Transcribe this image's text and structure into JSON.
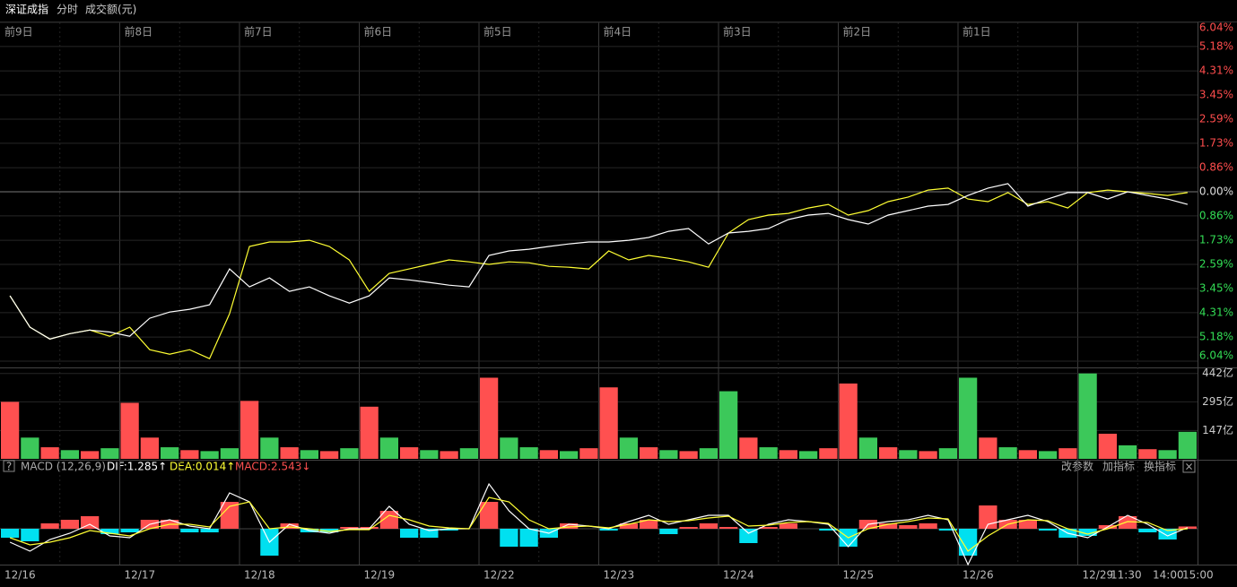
{
  "header": {
    "title": "深证成指",
    "tabs": [
      "分时",
      "成交额(元)"
    ]
  },
  "macd_header": {
    "help": "?",
    "name": "MACD (12,26,9)",
    "indicators": [
      "DIF:1.285↑",
      "DEA:0.014↑",
      "MACD:2.543↓"
    ],
    "buttons": [
      "改参数",
      "加指标",
      "换指标"
    ],
    "close": "×"
  },
  "date_labels": [
    "12/16",
    "12/17",
    "12/18",
    "12/19",
    "12/22",
    "12/23",
    "12/24",
    "12/25",
    "12/26",
    "12/29",
    "11:30",
    "14:00",
    "15:00"
  ],
  "chart_data": [
    {
      "type": "line",
      "periods": [
        "前9日",
        "前8日",
        "前7日",
        "前6日",
        "前5日",
        "前4日",
        "前3日",
        "前2日",
        "前1日"
      ],
      "x": [
        0,
        1,
        2,
        3,
        4,
        5,
        6,
        7,
        8,
        9,
        10,
        11,
        12,
        13,
        14,
        15,
        16,
        17,
        18,
        19,
        20,
        21,
        22,
        23,
        24,
        25,
        26,
        27,
        28,
        29,
        30,
        31,
        32,
        33,
        34,
        35,
        36,
        37,
        38,
        39,
        40,
        41,
        42,
        43,
        44,
        45,
        46,
        47,
        48,
        49,
        50,
        51,
        52,
        53,
        54,
        55,
        56,
        57,
        58,
        59
      ],
      "xlim": [
        -0.5,
        59.5
      ],
      "ylim": [
        -6.04,
        6.04
      ],
      "yticks": [
        {
          "value": 6.04,
          "label": "6.04%"
        },
        {
          "value": 5.18,
          "label": "5.18%"
        },
        {
          "value": 4.31,
          "label": "4.31%"
        },
        {
          "value": 3.45,
          "label": "3.45%"
        },
        {
          "value": 2.59,
          "label": "2.59%"
        },
        {
          "value": 1.73,
          "label": "1.73%"
        },
        {
          "value": 0.86,
          "label": "0.86%"
        },
        {
          "value": 0,
          "label": "0.00%"
        },
        {
          "value": -0.86,
          "label": "0.86%"
        },
        {
          "value": -1.73,
          "label": "1.73%"
        },
        {
          "value": -2.59,
          "label": "2.59%"
        },
        {
          "value": -3.45,
          "label": "3.45%"
        },
        {
          "value": -4.31,
          "label": "4.31%"
        },
        {
          "value": -5.18,
          "label": "5.18%"
        },
        {
          "value": -6.04,
          "label": "6.04%"
        }
      ],
      "grid": true,
      "series": [
        {
          "color": "#ffff33",
          "values": [
            -3.71,
            -4.83,
            -5.25,
            -5.06,
            -4.93,
            -5.15,
            -4.83,
            -5.63,
            -5.79,
            -5.63,
            -5.95,
            -4.35,
            -1.95,
            -1.79,
            -1.79,
            -1.73,
            -1.95,
            -2.43,
            -3.55,
            -2.91,
            -2.75,
            -2.59,
            -2.43,
            -2.5,
            -2.59,
            -2.5,
            -2.53,
            -2.66,
            -2.69,
            -2.75,
            -2.11,
            -2.43,
            -2.27,
            -2.37,
            -2.5,
            -2.69,
            -1.47,
            -0.99,
            -0.83,
            -0.77,
            -0.58,
            -0.45,
            -0.83,
            -0.67,
            -0.35,
            -0.19,
            0.06,
            0.13,
            -0.26,
            -0.35,
            -0.03,
            -0.45,
            -0.35,
            -0.58,
            -0.03,
            0.06,
            0,
            -0.06,
            -0.13,
            -0.03
          ]
        },
        {
          "color": "#ffffff",
          "values": [
            -3.71,
            -4.83,
            -5.25,
            -5.06,
            -4.93,
            -5.0,
            -5.15,
            -4.51,
            -4.29,
            -4.19,
            -4.03,
            -2.75,
            -3.39,
            -3.07,
            -3.55,
            -3.39,
            -3.71,
            -3.97,
            -3.71,
            -3.07,
            -3.14,
            -3.23,
            -3.33,
            -3.39,
            -2.27,
            -2.11,
            -2.05,
            -1.95,
            -1.86,
            -1.79,
            -1.79,
            -1.73,
            -1.63,
            -1.41,
            -1.31,
            -1.86,
            -1.47,
            -1.41,
            -1.31,
            -0.99,
            -0.83,
            -0.77,
            -0.99,
            -1.15,
            -0.83,
            -0.67,
            -0.51,
            -0.45,
            -0.13,
            0.13,
            0.29,
            -0.51,
            -0.26,
            -0.03,
            -0.03,
            -0.26,
            0,
            -0.13,
            -0.26,
            -0.45
          ]
        }
      ]
    },
    {
      "type": "bar",
      "ylim": [
        0,
        450
      ],
      "yticks": [
        {
          "value": 442,
          "label": "442亿"
        },
        {
          "value": 295,
          "label": "295亿"
        },
        {
          "value": 147,
          "label": "147亿"
        }
      ],
      "values": [
        295,
        110,
        60,
        45,
        40,
        55,
        290,
        110,
        60,
        45,
        40,
        55,
        300,
        110,
        60,
        45,
        40,
        55,
        270,
        110,
        60,
        45,
        40,
        55,
        420,
        110,
        60,
        45,
        40,
        55,
        370,
        110,
        60,
        45,
        40,
        55,
        350,
        110,
        60,
        45,
        40,
        55,
        390,
        110,
        60,
        45,
        40,
        55,
        420,
        110,
        60,
        45,
        40,
        55,
        442,
        130,
        70,
        50,
        45,
        140
      ],
      "colors": [
        "#ff5050",
        "#3cc85a",
        "#ff5050",
        "#3cc85a",
        "#ff5050",
        "#3cc85a",
        "#ff5050",
        "#ff5050",
        "#3cc85a",
        "#ff5050",
        "#3cc85a",
        "#3cc85a",
        "#ff5050",
        "#3cc85a",
        "#ff5050",
        "#3cc85a",
        "#ff5050",
        "#3cc85a",
        "#ff5050",
        "#3cc85a",
        "#ff5050",
        "#3cc85a",
        "#ff5050",
        "#3cc85a",
        "#ff5050",
        "#3cc85a",
        "#3cc85a",
        "#ff5050",
        "#3cc85a",
        "#ff5050",
        "#ff5050",
        "#3cc85a",
        "#ff5050",
        "#3cc85a",
        "#ff5050",
        "#3cc85a",
        "#3cc85a",
        "#ff5050",
        "#3cc85a",
        "#ff5050",
        "#3cc85a",
        "#ff5050",
        "#ff5050",
        "#3cc85a",
        "#ff5050",
        "#3cc85a",
        "#ff5050",
        "#3cc85a",
        "#3cc85a",
        "#ff5050",
        "#3cc85a",
        "#ff5050",
        "#3cc85a",
        "#ff5050",
        "#3cc85a",
        "#ff5050",
        "#3cc85a",
        "#ff5050",
        "#3cc85a",
        "#3cc85a"
      ]
    },
    {
      "type": "macd",
      "ylim": [
        -38,
        60
      ],
      "up_color": "#ff5050",
      "down_color": "#00e0f0",
      "histogram": [
        -10,
        -14,
        6,
        10,
        14,
        -6,
        -4,
        10,
        10,
        -4,
        -4,
        30,
        0,
        -30,
        6,
        -4,
        -4,
        2,
        2,
        20,
        -10,
        -10,
        -2,
        0,
        30,
        -20,
        -20,
        -10,
        6,
        0,
        -2,
        6,
        10,
        -6,
        2,
        6,
        2,
        -16,
        2,
        6,
        0,
        -2,
        -20,
        10,
        6,
        4,
        6,
        -2,
        -30,
        26,
        10,
        10,
        -2,
        -10,
        -8,
        4,
        14,
        -4,
        -12,
        2.543
      ],
      "series": [
        {
          "color": "#ffffff",
          "values": [
            -15,
            -25,
            -12,
            -5,
            5,
            -8,
            -10,
            5,
            10,
            3,
            0,
            40,
            30,
            -15,
            5,
            -2,
            -5,
            0,
            0,
            25,
            5,
            -2,
            0,
            0,
            50,
            20,
            0,
            -5,
            5,
            3,
            0,
            8,
            15,
            5,
            10,
            15,
            15,
            -5,
            5,
            10,
            8,
            5,
            -20,
            5,
            8,
            10,
            15,
            10,
            -40,
            5,
            10,
            15,
            8,
            -5,
            -10,
            2,
            15,
            5,
            -8,
            1.285
          ]
        },
        {
          "color": "#ffff33",
          "values": [
            -10,
            -18,
            -15,
            -10,
            -2,
            -5,
            -8,
            0,
            5,
            5,
            2,
            25,
            30,
            0,
            2,
            0,
            -3,
            -1,
            -1,
            15,
            10,
            3,
            1,
            0,
            35,
            30,
            10,
            0,
            2,
            3,
            1,
            5,
            10,
            8,
            9,
            12,
            14,
            3,
            4,
            7,
            8,
            6,
            -10,
            0,
            5,
            8,
            12,
            11,
            -25,
            -8,
            5,
            10,
            9,
            0,
            -6,
            0,
            8,
            7,
            -2,
            0.014
          ]
        }
      ]
    }
  ]
}
